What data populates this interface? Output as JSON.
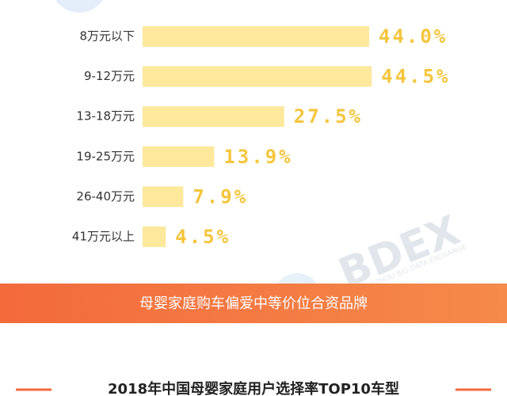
{
  "chart_data": {
    "type": "bar",
    "orientation": "horizontal",
    "categories": [
      "8万元以下",
      "9-12万元",
      "13-18万元",
      "19-25万元",
      "26-40万元",
      "41万元以上"
    ],
    "values": [
      44.0,
      44.5,
      27.5,
      13.9,
      7.9,
      4.5
    ],
    "value_labels": [
      "44.0%",
      "44.5%",
      "27.5%",
      "13.9%",
      "7.9%",
      "4.5%"
    ],
    "color": "#fde89c",
    "label_color": "#f5c53c"
  },
  "watermark": {
    "title": "BDEX",
    "subtitle": "GUIZHOU BIG DATA EXCHANGE"
  },
  "banner": "母婴家庭购车偏爱中等价位合资品牌",
  "section_title": "2018年中国母婴家庭用户选择率TOP10车型"
}
